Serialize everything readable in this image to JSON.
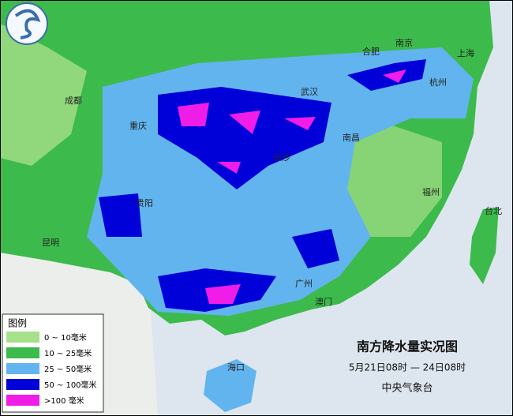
{
  "title": "南方降水量实况图",
  "period": "5月21日08时 — 24日08时",
  "issuer": "中央气象台",
  "legend": {
    "title": "图例",
    "items": [
      {
        "label": "0 ~ 10毫米",
        "color": "#a6e08a"
      },
      {
        "label": "10 ~ 25毫米",
        "color": "#3dba4c"
      },
      {
        "label": "25 ~ 50毫米",
        "color": "#62b4ee"
      },
      {
        "label": "50 ~ 100毫米",
        "color": "#0000d8"
      },
      {
        "label": ">100 毫米",
        "color": "#f01ce8"
      }
    ]
  },
  "cities": [
    {
      "name": "成都"
    },
    {
      "name": "重庆"
    },
    {
      "name": "贵阳"
    },
    {
      "name": "昆明"
    },
    {
      "name": "武汉"
    },
    {
      "name": "长沙"
    },
    {
      "name": "南昌"
    },
    {
      "name": "合肥"
    },
    {
      "name": "南京"
    },
    {
      "name": "上海"
    },
    {
      "name": "杭州"
    },
    {
      "name": "福州"
    },
    {
      "name": "台北"
    },
    {
      "name": "广州"
    },
    {
      "name": "澳门"
    },
    {
      "name": "海口"
    }
  ]
}
